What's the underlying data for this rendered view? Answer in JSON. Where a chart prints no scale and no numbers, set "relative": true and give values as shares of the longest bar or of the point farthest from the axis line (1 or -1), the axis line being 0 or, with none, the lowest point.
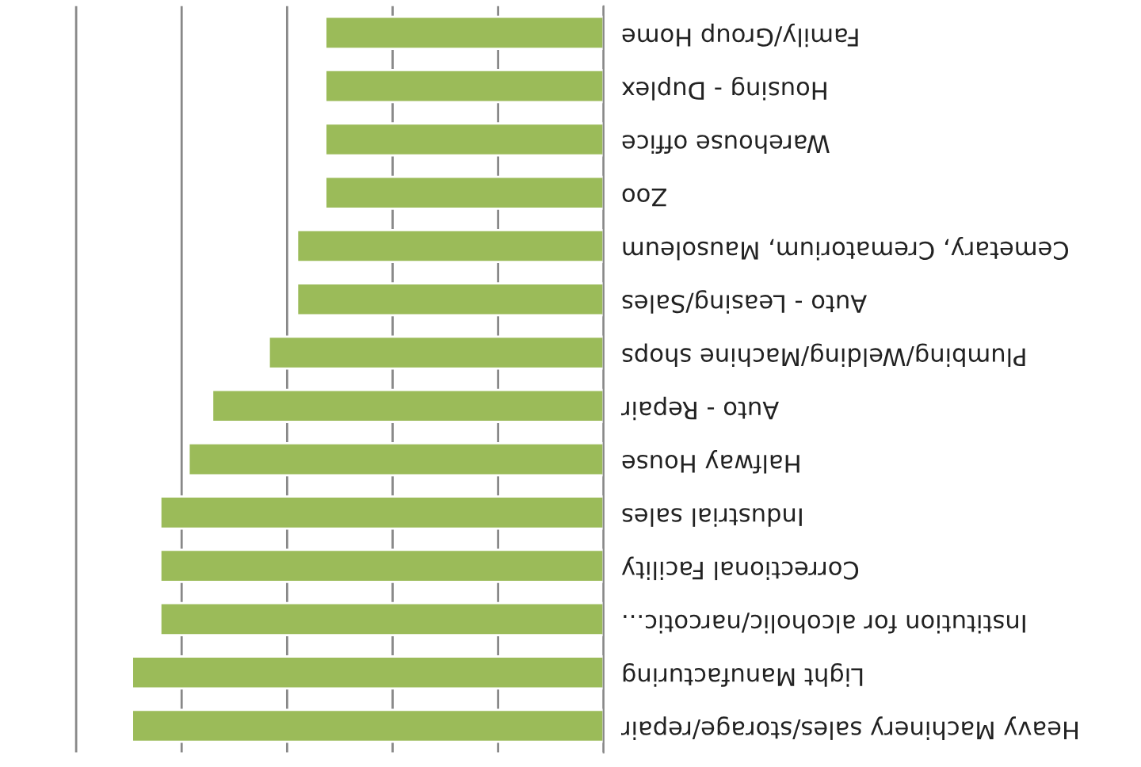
{
  "chart_data": {
    "type": "bar",
    "orientation": "horizontal",
    "relative": true,
    "grid": "x",
    "categories": [
      "Family/Group Home",
      "Housing - Duplex",
      "Warehouse office",
      "Zoo",
      "Cemetary, Crematorium, Mausoleum",
      "Auto - Leasing/Sales",
      "Plumbing/Welding/Machine shops",
      "Auto - Repair",
      "Halfway House",
      "Industrial sales",
      "Correctional Facility",
      "Institution for alcoholic/narcotic...",
      "Light Manufacturing",
      "Heavy Machinery sales/storage/repair"
    ],
    "values": [
      0.59,
      0.59,
      0.59,
      0.59,
      0.65,
      0.65,
      0.71,
      0.83,
      0.88,
      0.94,
      0.94,
      0.94,
      1,
      1
    ],
    "color": "#9bbb59"
  }
}
